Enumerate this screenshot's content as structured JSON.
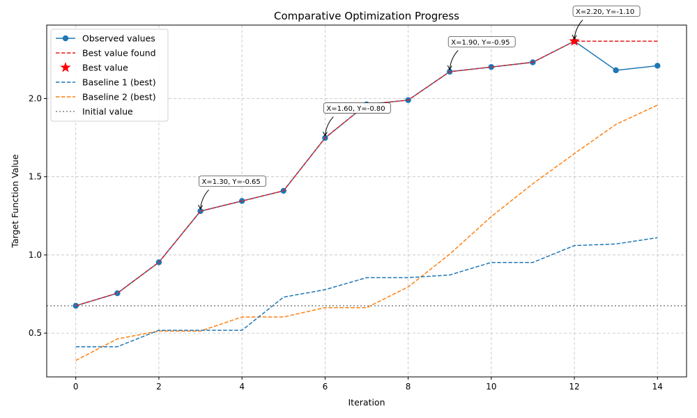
{
  "chart_data": {
    "type": "line",
    "title": "Comparative Optimization Progress",
    "xlabel": "Iteration",
    "ylabel": "Target Function Value",
    "xlim": [
      -0.7,
      14.7
    ],
    "ylim": [
      0.22,
      2.47
    ],
    "xticks": [
      "0",
      "2",
      "4",
      "6",
      "8",
      "10",
      "12",
      "14"
    ],
    "xtick_values": [
      0,
      2,
      4,
      6,
      8,
      10,
      12,
      14
    ],
    "yticks": [
      "0.5",
      "1.0",
      "1.5",
      "2.0"
    ],
    "ytick_values": [
      0.5,
      1.0,
      1.5,
      2.0
    ],
    "grid": true,
    "legend_position": "top-left",
    "x": [
      0,
      1,
      2,
      3,
      4,
      5,
      6,
      7,
      8,
      9,
      10,
      11,
      12,
      13,
      14
    ],
    "series": [
      {
        "name": "Observed values",
        "style": "solid-marker",
        "color": "#1f77b4",
        "values": [
          0.675,
          0.755,
          0.953,
          1.28,
          1.345,
          1.41,
          1.748,
          1.963,
          1.99,
          2.172,
          2.202,
          2.232,
          2.367,
          2.181,
          2.21
        ]
      },
      {
        "name": "Best value found",
        "style": "dashed",
        "color": "#e31a1c",
        "values": [
          0.675,
          0.755,
          0.953,
          1.28,
          1.345,
          1.41,
          1.748,
          1.963,
          1.99,
          2.172,
          2.202,
          2.232,
          2.367,
          2.367,
          2.367
        ]
      },
      {
        "name": "Baseline 1 (best)",
        "style": "dashed",
        "color": "#1f77b4",
        "values": [
          0.413,
          0.413,
          0.518,
          0.518,
          0.518,
          0.73,
          0.778,
          0.855,
          0.855,
          0.872,
          0.952,
          0.952,
          1.06,
          1.07,
          1.11
        ]
      },
      {
        "name": "Baseline 2 (best)",
        "style": "dashed",
        "color": "#ff7f0e",
        "values": [
          0.325,
          0.463,
          0.513,
          0.513,
          0.603,
          0.603,
          0.663,
          0.663,
          0.795,
          1.005,
          1.245,
          1.455,
          1.648,
          1.835,
          1.958
        ]
      }
    ],
    "best_value": {
      "name": "Best value",
      "x": 12,
      "y": 2.367,
      "color": "#ff0000"
    },
    "initial_value": {
      "name": "Initial value",
      "y": 0.675,
      "color": "#808080"
    },
    "annotations": [
      {
        "text": "X=1.30, Y=-0.65",
        "x": 3,
        "y": 1.28
      },
      {
        "text": "X=1.60, Y=-0.80",
        "x": 6,
        "y": 1.748
      },
      {
        "text": "X=1.90, Y=-0.95",
        "x": 9,
        "y": 2.172
      },
      {
        "text": "X=2.20, Y=-1.10",
        "x": 12,
        "y": 2.367
      }
    ],
    "legend": [
      "Observed values",
      "Best value found",
      "Best value",
      "Baseline 1 (best)",
      "Baseline 2 (best)",
      "Initial value"
    ]
  }
}
